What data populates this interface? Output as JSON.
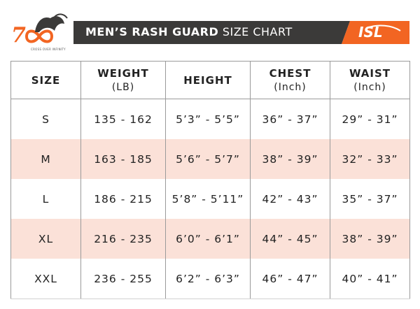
{
  "header": {
    "title_bold": "MEN’S  RASH GUARD",
    "title_light": "SIZE CHART",
    "tagline": "CROSS OVER INFINITY",
    "brand": "ISL"
  },
  "table": {
    "columns": [
      {
        "label": "SIZE"
      },
      {
        "label": "WEIGHT",
        "unit": "(LB)"
      },
      {
        "label": "HEIGHT"
      },
      {
        "label": "CHEST",
        "unit": "(Inch)"
      },
      {
        "label": "WAIST",
        "unit": "(Inch)"
      }
    ],
    "rows": [
      [
        "S",
        "135 - 162",
        "5’3” - 5’5”",
        "36” - 37”",
        "29” - 31”"
      ],
      [
        "M",
        "163 - 185",
        "5’6” - 5’7”",
        "38” - 39”",
        "32” - 33”"
      ],
      [
        "L",
        "186 - 215",
        "5’8” - 5’11”",
        "42” - 43”",
        "35” - 37”"
      ],
      [
        "XL",
        "216 - 235",
        "6’0” - 6’1”",
        "44” - 45”",
        "38” - 39”"
      ],
      [
        "XXL",
        "236 - 255",
        "6’2” - 6’3”",
        "46” - 47”",
        "40” - 41”"
      ]
    ]
  }
}
